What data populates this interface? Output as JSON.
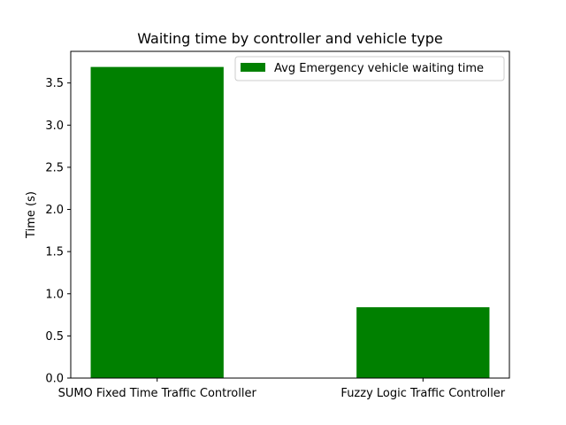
{
  "chart_data": {
    "type": "bar",
    "title": "Waiting time by controller and vehicle type",
    "xlabel": "",
    "ylabel": "Time (s)",
    "categories": [
      "SUMO Fixed Time Traffic Controller",
      "Fuzzy Logic Traffic Controller"
    ],
    "series": [
      {
        "name": "Avg Emergency vehicle waiting time",
        "values": [
          3.69,
          0.84
        ],
        "color": "#008000"
      }
    ],
    "ylim": [
      0,
      3.875
    ],
    "yticks": [
      "0.0",
      "0.5",
      "1.0",
      "1.5",
      "2.0",
      "2.5",
      "3.0",
      "3.5"
    ],
    "grid": false,
    "legend_position": "top-right"
  }
}
